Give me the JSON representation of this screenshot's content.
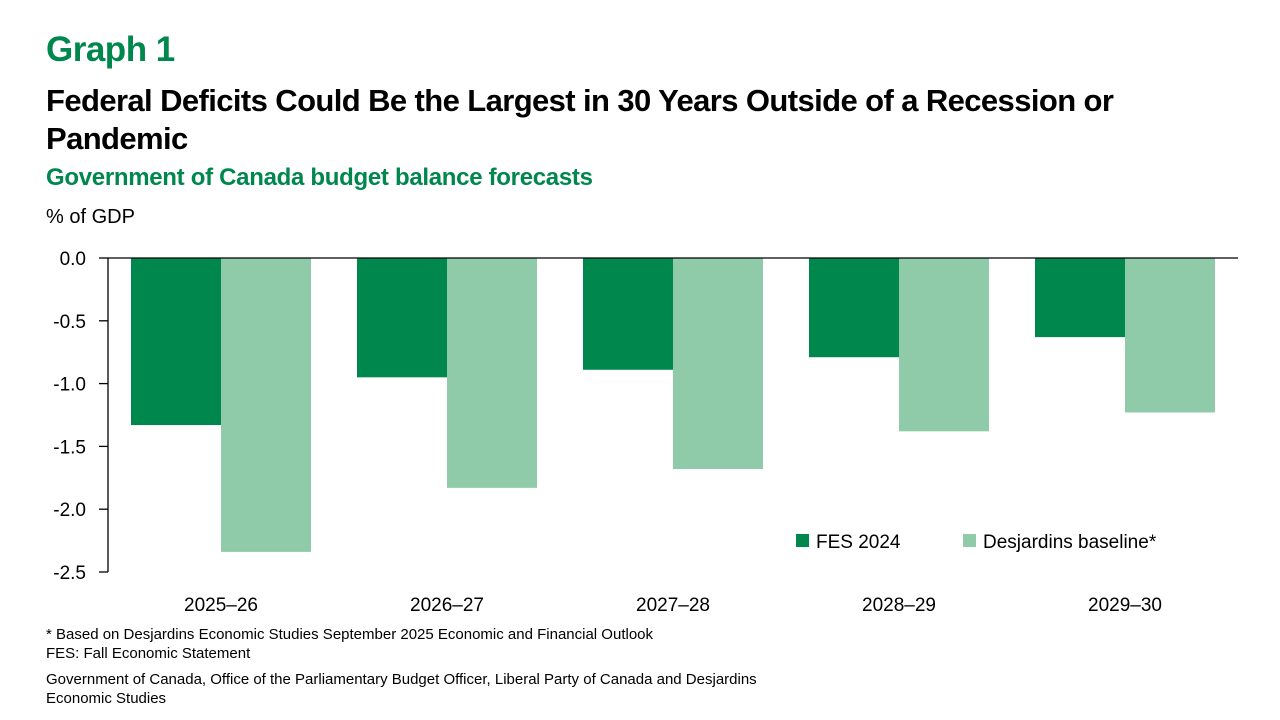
{
  "header": {
    "graph_label": "Graph 1",
    "title": "Federal Deficits Could Be the Largest in 30 Years Outside of a Recession or Pandemic",
    "subtitle": "Government of Canada budget balance forecasts",
    "unit": "% of GDP"
  },
  "colors": {
    "accent": "#00874E",
    "series_dark": "#00874E",
    "series_light": "#8FCAA9"
  },
  "chart_data": {
    "type": "bar",
    "title": "Government of Canada budget balance forecasts",
    "xlabel": "",
    "ylabel": "% of GDP",
    "ylim": [
      -2.5,
      0.0
    ],
    "yticks": [
      0.0,
      -0.5,
      -1.0,
      -1.5,
      -2.0,
      -2.5
    ],
    "ytick_labels": [
      "0.0",
      "-0.5",
      "-1.0",
      "-1.5",
      "-2.0",
      "-2.5"
    ],
    "categories": [
      "2025–26",
      "2026–27",
      "2027–28",
      "2028–29",
      "2029–30"
    ],
    "series": [
      {
        "name": "FES 2024",
        "color": "#00874E",
        "values": [
          -1.33,
          -0.95,
          -0.89,
          -0.79,
          -0.63
        ]
      },
      {
        "name": "Desjardins baseline*",
        "color": "#8FCAA9",
        "values": [
          -2.34,
          -1.83,
          -1.68,
          -1.38,
          -1.23
        ]
      }
    ],
    "grid": false,
    "legend": "bottom-right"
  },
  "notes": {
    "line1": "* Based on Desjardins Economic Studies September 2025 Economic and Financial Outlook",
    "line2": "FES: Fall Economic Statement",
    "source1": "Government of Canada, Office of the Parliamentary Budget Officer, Liberal Party of Canada and Desjardins",
    "source2": "Economic Studies"
  }
}
